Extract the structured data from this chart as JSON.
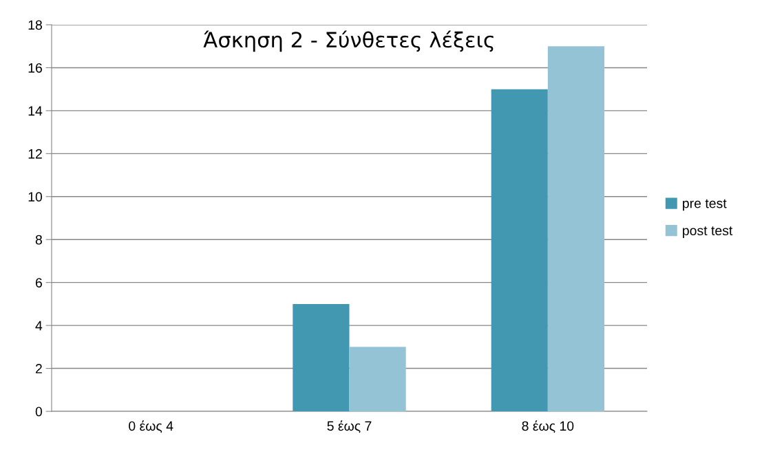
{
  "chart_data": {
    "type": "bar",
    "title": "Άσκηση 2 - Σύνθετες λέξεις",
    "categories": [
      "0 έως 4",
      "5 έως 7",
      "8 έως 10"
    ],
    "series": [
      {
        "name": "pre test",
        "color": "#4198b0",
        "values": [
          0,
          5,
          15
        ]
      },
      {
        "name": "post test",
        "color": "#93c3d5",
        "values": [
          0,
          3,
          17
        ]
      }
    ],
    "ylim": [
      0,
      18
    ],
    "yticks": [
      0,
      2,
      4,
      6,
      8,
      10,
      12,
      14,
      16,
      18
    ],
    "grid": "y",
    "legend": "right"
  }
}
